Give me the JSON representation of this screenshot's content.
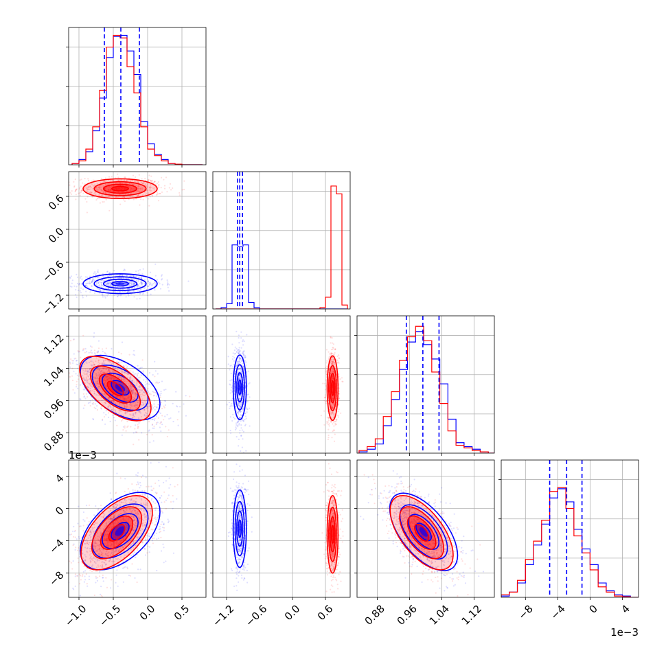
{
  "chart_data": {
    "type": "corner",
    "grid": true,
    "series": [
      {
        "color": "#0000ff"
      },
      {
        "color": "#ff0000"
      }
    ],
    "params": [
      {
        "lim": [
          -1.15,
          0.85
        ],
        "ticks": [
          -1.0,
          -0.5,
          0.0,
          0.5
        ],
        "tick_labels": [
          "−1.0",
          "−0.5",
          "0.0",
          "0.5"
        ],
        "offset": "",
        "hist_max": 1.0,
        "hist_x": [
          -1.05,
          -0.95,
          -0.85,
          -0.75,
          -0.65,
          -0.55,
          -0.45,
          -0.35,
          -0.25,
          -0.15,
          -0.05,
          0.05,
          0.15,
          0.25,
          0.35,
          0.45,
          0.55,
          0.65,
          0.75
        ],
        "hist": [
          [
            0.01,
            0.04,
            0.1,
            0.26,
            0.51,
            0.82,
            0.98,
            0.99,
            0.87,
            0.69,
            0.33,
            0.16,
            0.08,
            0.04,
            0.01,
            0.005,
            0,
            0,
            0
          ],
          [
            0.01,
            0.03,
            0.12,
            0.29,
            0.57,
            0.9,
            0.99,
            0.97,
            0.75,
            0.55,
            0.29,
            0.12,
            0.07,
            0.03,
            0.01,
            0.005,
            0,
            0,
            0
          ]
        ],
        "quantiles": [
          -0.63,
          -0.39,
          -0.12
        ]
      },
      {
        "lim": [
          -1.45,
          1.05
        ],
        "ticks": [
          -1.2,
          -0.6,
          0.0,
          0.6
        ],
        "tick_labels": [
          "−1.2",
          "−0.6",
          "0.0",
          "0.6"
        ],
        "offset": "",
        "hist_max": 1.0,
        "hist_x": [
          -1.35,
          -1.25,
          -1.15,
          -1.05,
          -0.95,
          -0.85,
          -0.75,
          -0.65,
          -0.55,
          -0.45,
          -0.35,
          -0.25,
          -0.15,
          -0.05,
          0.05,
          0.15,
          0.25,
          0.35,
          0.45,
          0.55,
          0.65,
          0.75,
          0.85,
          0.95
        ],
        "hist": [
          [
            0,
            0.01,
            0.04,
            0.49,
            0.48,
            0.49,
            0.05,
            0.01,
            0,
            0,
            0,
            0,
            0,
            0,
            0,
            0,
            0,
            0,
            0,
            0,
            0,
            0,
            0,
            0
          ],
          [
            0,
            0,
            0,
            0,
            0,
            0,
            0,
            0,
            0,
            0,
            0,
            0,
            0,
            0,
            0,
            0,
            0,
            0,
            0,
            0.01,
            0.09,
            0.94,
            0.88,
            0.03
          ]
        ],
        "quantiles": [
          -1.0,
          -0.96,
          -0.91
        ]
      },
      {
        "lim": [
          0.83,
          1.17
        ],
        "ticks": [
          0.88,
          0.96,
          1.04,
          1.12
        ],
        "tick_labels": [
          "0.88",
          "0.96",
          "1.04",
          "1.12"
        ],
        "offset": "",
        "hist_max": 1.0,
        "hist_x": [
          0.845,
          0.865,
          0.885,
          0.905,
          0.925,
          0.945,
          0.965,
          0.985,
          1.005,
          1.025,
          1.045,
          1.065,
          1.085,
          1.105,
          1.125,
          1.145,
          1.165
        ],
        "hist": [
          [
            0.01,
            0.03,
            0.07,
            0.21,
            0.41,
            0.64,
            0.85,
            0.93,
            0.83,
            0.72,
            0.53,
            0.26,
            0.08,
            0.05,
            0.03,
            0.01,
            0
          ],
          [
            0.02,
            0.05,
            0.11,
            0.28,
            0.47,
            0.71,
            0.89,
            0.97,
            0.86,
            0.62,
            0.38,
            0.17,
            0.06,
            0.04,
            0.02,
            0.01,
            0
          ]
        ],
        "quantiles": [
          0.952,
          0.993,
          1.033
        ]
      },
      {
        "lim": [
          -11.0,
          6.0
        ],
        "ticks": [
          -8,
          -4,
          0,
          4
        ],
        "tick_labels": [
          "−8",
          "−4",
          "0",
          "4"
        ],
        "offset": "1e−3",
        "hist_max": 1.0,
        "hist_x": [
          -10.5,
          -9.5,
          -8.5,
          -7.5,
          -6.5,
          -5.5,
          -4.5,
          -3.5,
          -2.5,
          -1.5,
          -0.5,
          0.5,
          1.5,
          2.5,
          3.5,
          4.5,
          5.5
        ],
        "hist": [
          [
            0.01,
            0.04,
            0.11,
            0.25,
            0.4,
            0.56,
            0.76,
            0.83,
            0.73,
            0.52,
            0.37,
            0.25,
            0.11,
            0.05,
            0.02,
            0.01,
            0
          ],
          [
            0.02,
            0.04,
            0.13,
            0.29,
            0.43,
            0.59,
            0.81,
            0.84,
            0.68,
            0.47,
            0.34,
            0.21,
            0.08,
            0.04,
            0.01,
            0.005,
            0
          ]
        ],
        "quantiles": [
          -5.0,
          -2.9,
          -1.0
        ]
      }
    ],
    "pairs": [
      {
        "row": 1,
        "col": 0,
        "clusters": [
          {
            "series": 1,
            "cx": -0.4,
            "cy": 0.74,
            "sx": 0.27,
            "sy": 0.09,
            "rho": 0.0
          },
          {
            "series": 0,
            "cx": -0.4,
            "cy": -0.99,
            "sx": 0.27,
            "sy": 0.09,
            "rho": 0.0
          }
        ]
      },
      {
        "row": 2,
        "col": 0,
        "clusters": [
          {
            "series": 0,
            "cx": -0.4,
            "cy": 0.992,
            "sx": 0.29,
            "sy": 0.04,
            "rho": -0.5
          },
          {
            "series": 1,
            "cx": -0.47,
            "cy": 0.99,
            "sx": 0.26,
            "sy": 0.04,
            "rho": -0.6
          }
        ]
      },
      {
        "row": 2,
        "col": 1,
        "clusters": [
          {
            "series": 0,
            "cx": -0.96,
            "cy": 0.993,
            "sx": 0.06,
            "sy": 0.04,
            "rho": 0.0
          },
          {
            "series": 1,
            "cx": 0.73,
            "cy": 0.991,
            "sx": 0.05,
            "sy": 0.04,
            "rho": 0.0
          }
        ]
      },
      {
        "row": 3,
        "col": 0,
        "clusters": [
          {
            "series": 0,
            "cx": -0.4,
            "cy": -2.8,
            "sx": 0.29,
            "sy": 2.4,
            "rho": 0.5
          },
          {
            "series": 1,
            "cx": -0.45,
            "cy": -3.0,
            "sx": 0.26,
            "sy": 2.3,
            "rho": 0.55
          }
        ]
      },
      {
        "row": 3,
        "col": 1,
        "clusters": [
          {
            "series": 0,
            "cx": -0.96,
            "cy": -2.5,
            "sx": 0.06,
            "sy": 2.4,
            "rho": 0.0
          },
          {
            "series": 1,
            "cx": 0.73,
            "cy": -3.2,
            "sx": 0.05,
            "sy": 2.4,
            "rho": 0.0
          }
        ]
      },
      {
        "row": 3,
        "col": 2,
        "clusters": [
          {
            "series": 0,
            "cx": 0.995,
            "cy": -2.9,
            "sx": 0.042,
            "sy": 2.4,
            "rho": -0.6
          },
          {
            "series": 1,
            "cx": 0.99,
            "cy": -3.0,
            "sx": 0.039,
            "sy": 2.3,
            "rho": -0.6
          }
        ]
      }
    ]
  }
}
